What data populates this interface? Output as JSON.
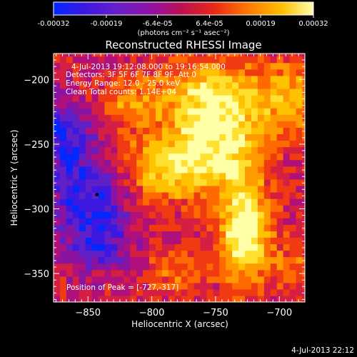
{
  "colorbar": {
    "ticks": [
      "-0.00032",
      "-0.00019",
      "-6.4e-05",
      "6.4e-05",
      "0.00019",
      "0.00032"
    ],
    "tick_values": [
      -0.00032,
      -0.00019,
      -6.4e-05,
      6.4e-05,
      0.00019,
      0.00032
    ],
    "range": [
      -0.00032,
      0.00032
    ],
    "units": "(photons cm⁻² s⁻¹ asec⁻²)"
  },
  "annotations": {
    "time": "4-Jul-2013 19:12:08.000 to 19:16:54.000",
    "detectors": "Detectors: 3F 5F 6F 7F 8F 9F, Att 0",
    "energy": "Energy Range: 12.0 - 25.0 keV",
    "clean": "Clean     Total counts: 1.14E+04",
    "peak": "Position of Peak = [-727,-317]"
  },
  "footer_timestamp": "4-Jul-2013 22:12",
  "colors": {
    "background": "#000000",
    "text": "#ffffff"
  },
  "chart_data": {
    "type": "heatmap",
    "title": "Reconstructed RHESSI Image",
    "xlabel": "Heliocentric X (arcsec)",
    "ylabel": "Heliocentric Y (arcsec)",
    "xlim": [
      -877,
      -680
    ],
    "ylim": [
      -372,
      -180
    ],
    "xticks": [
      -850,
      -800,
      -750,
      -700
    ],
    "xtick_labels": [
      "−850",
      "−800",
      "−750",
      "−700"
    ],
    "yticks": [
      -200,
      -250,
      -300,
      -350
    ],
    "ytick_labels": [
      "−200",
      "−250",
      "−300",
      "−350"
    ],
    "colormap": [
      "#0028ff",
      "#3c18e0",
      "#6020c8",
      "#8a14a0",
      "#b0107a",
      "#d41e44",
      "#f03a12",
      "#ff6a00",
      "#ff9a00",
      "#ffc200",
      "#ffe030",
      "#ffffa8"
    ],
    "peak_position": [
      -727,
      -317
    ],
    "min_marker": [
      -843,
      -289
    ],
    "sources": [
      {
        "x": -727,
        "y": -317,
        "sx": 14,
        "sy": 26,
        "amp": 1.0
      },
      {
        "x": -752,
        "y": -215,
        "sx": 32,
        "sy": 20,
        "amp": 0.78
      },
      {
        "x": -790,
        "y": -268,
        "sx": 28,
        "sy": 18,
        "amp": 0.7
      },
      {
        "x": -745,
        "y": -255,
        "sx": 22,
        "sy": 20,
        "amp": 0.62
      },
      {
        "x": -690,
        "y": -215,
        "sx": 16,
        "sy": 22,
        "amp": 0.4
      },
      {
        "x": -820,
        "y": -218,
        "sx": 14,
        "sy": 14,
        "amp": 0.35
      },
      {
        "x": -848,
        "y": -288,
        "sx": 24,
        "sy": 28,
        "amp": -0.6
      },
      {
        "x": -870,
        "y": -240,
        "sx": 14,
        "sy": 18,
        "amp": -0.5
      },
      {
        "x": -843,
        "y": -330,
        "sx": 14,
        "sy": 14,
        "amp": -0.4
      },
      {
        "x": -780,
        "y": -350,
        "sx": 18,
        "sy": 12,
        "amp": 0.28
      },
      {
        "x": -690,
        "y": -345,
        "sx": 10,
        "sy": 12,
        "amp": 0.3
      }
    ]
  }
}
